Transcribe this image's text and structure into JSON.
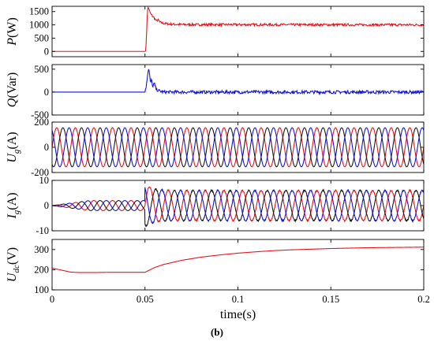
{
  "caption": "(b)",
  "chart_data": [
    {
      "type": "line",
      "ylabel": "P(W)",
      "xlim": [
        0,
        0.2
      ],
      "ylim": [
        -200,
        1700
      ],
      "yticks": [
        0,
        500,
        1000,
        1500
      ],
      "series": [
        {
          "color": "#e8141b",
          "points": [
            [
              0,
              0
            ],
            [
              0.05,
              0
            ],
            [
              0.0505,
              100
            ],
            [
              0.0508,
              600
            ],
            [
              0.0511,
              1200
            ],
            [
              0.0514,
              1550
            ],
            [
              0.0518,
              1680
            ],
            [
              0.0522,
              1560
            ],
            [
              0.053,
              1420
            ],
            [
              0.054,
              1330
            ],
            [
              0.055,
              1260
            ],
            [
              0.056,
              1150
            ],
            [
              0.057,
              1190
            ],
            [
              0.058,
              1100
            ],
            [
              0.06,
              1060
            ],
            [
              0.063,
              1030
            ],
            [
              0.07,
              1010
            ],
            [
              0.2,
              1000
            ]
          ],
          "noise": 45
        }
      ]
    },
    {
      "type": "line",
      "ylabel": "Q(Var)",
      "xlim": [
        0,
        0.2
      ],
      "ylim": [
        -500,
        600
      ],
      "yticks": [
        -500,
        0,
        500
      ],
      "series": [
        {
          "color": "#1515d6",
          "points": [
            [
              0,
              0
            ],
            [
              0.05,
              0
            ],
            [
              0.0505,
              80
            ],
            [
              0.051,
              250
            ],
            [
              0.0515,
              420
            ],
            [
              0.052,
              520
            ],
            [
              0.0525,
              380
            ],
            [
              0.053,
              160
            ],
            [
              0.0535,
              300
            ],
            [
              0.054,
              120
            ],
            [
              0.055,
              190
            ],
            [
              0.056,
              60
            ],
            [
              0.058,
              20
            ],
            [
              0.06,
              0
            ],
            [
              0.2,
              0
            ]
          ],
          "noise": 35
        }
      ]
    },
    {
      "type": "line",
      "ylabel": "U_g(A)",
      "xlim": [
        0,
        0.2
      ],
      "ylim": [
        -200,
        200
      ],
      "yticks": [
        -200,
        0,
        200
      ],
      "waveform": {
        "amplitude": 155,
        "frequency_hz": 100
      },
      "series": [
        {
          "color": "#e8141b",
          "phase_deg": 0
        },
        {
          "color": "#1a1a1a",
          "phase_deg": -120
        },
        {
          "color": "#1515d6",
          "phase_deg": 120
        }
      ]
    },
    {
      "type": "line",
      "ylabel": "I_g(A)",
      "xlim": [
        0,
        0.2
      ],
      "ylim": [
        -10,
        10
      ],
      "yticks": [
        -10,
        0,
        10
      ],
      "waveform": {
        "frequency_hz": 100,
        "amplitude_before_0.05s": 2,
        "amplitude_after_0.05s": 6
      },
      "series": [
        {
          "color": "#e8141b",
          "phase_deg": 0
        },
        {
          "color": "#1a1a1a",
          "phase_deg": -120
        },
        {
          "color": "#1515d6",
          "phase_deg": 120
        }
      ]
    },
    {
      "type": "line",
      "ylabel": "U_dc(V)",
      "xlim": [
        0,
        0.2
      ],
      "ylim": [
        100,
        350
      ],
      "yticks": [
        100,
        200,
        300
      ],
      "xticks": [
        0,
        0.05,
        0.1,
        0.15,
        0.2
      ],
      "xticklabels": [
        "0",
        "0.05",
        "0.1",
        "0.15",
        "0.2"
      ],
      "xlabel": "time(s)",
      "series": [
        {
          "color": "#e8141b",
          "points": [
            [
              0,
              208
            ],
            [
              0.005,
              198
            ],
            [
              0.01,
              188
            ],
            [
              0.015,
              186
            ],
            [
              0.02,
              186
            ],
            [
              0.03,
              187
            ],
            [
              0.04,
              187
            ],
            [
              0.05,
              187
            ],
            [
              0.055,
              210
            ],
            [
              0.06,
              226
            ],
            [
              0.07,
              247
            ],
            [
              0.08,
              262
            ],
            [
              0.09,
              273
            ],
            [
              0.1,
              282
            ],
            [
              0.11,
              289
            ],
            [
              0.12,
              295
            ],
            [
              0.13,
              299
            ],
            [
              0.14,
              302
            ],
            [
              0.15,
              305
            ],
            [
              0.16,
              307
            ],
            [
              0.17,
              309
            ],
            [
              0.18,
              310
            ],
            [
              0.19,
              311
            ],
            [
              0.2,
              312
            ]
          ]
        }
      ]
    }
  ]
}
